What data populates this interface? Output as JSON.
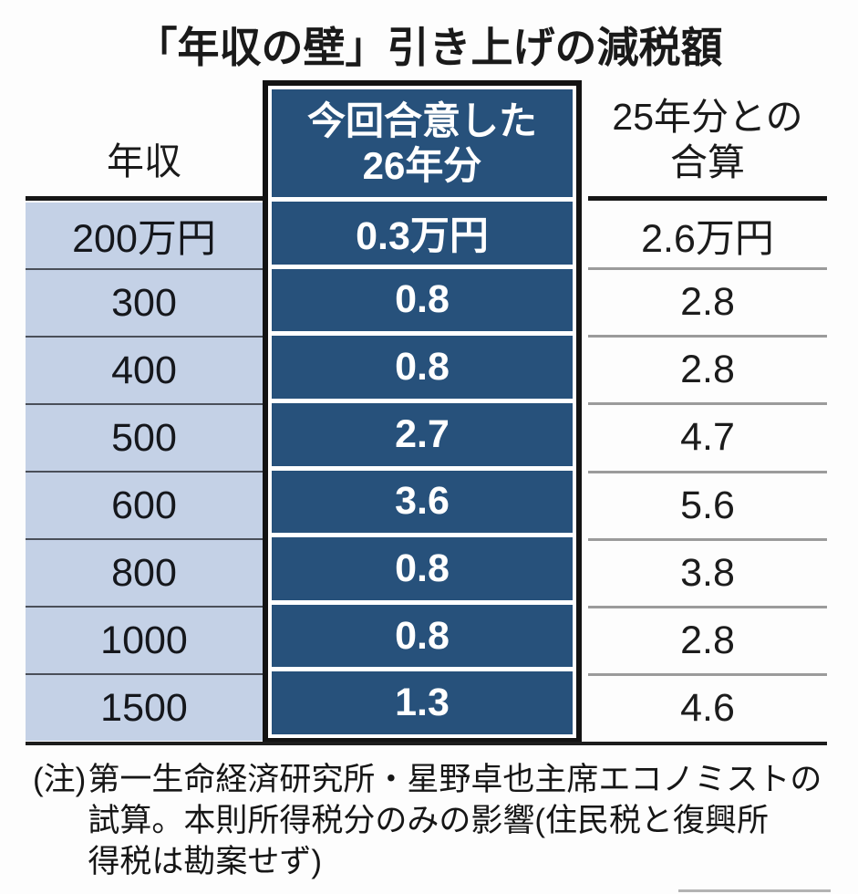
{
  "colors": {
    "navy": "#27517b",
    "lightblue": "#c4d1e6",
    "rule": "#161616",
    "sepleft": "#4a4f59",
    "sepright": "#9b9b9b",
    "bg": "#fdfdfd"
  },
  "chart_data": {
    "type": "table",
    "title": "「年収の壁」引き上げの減税額",
    "columns": [
      "年収",
      "今回合意した26年分",
      "25年分との合算"
    ],
    "headers": {
      "income": "年収",
      "fy26": "今回合意した\n26年分",
      "total": "25年分との\n合算"
    },
    "unit": "万円",
    "rows": [
      {
        "income": "200万円",
        "fy26": "0.3万円",
        "total": "2.6万円",
        "income_value": 200,
        "fy26_value": 0.3,
        "total_value": 2.6
      },
      {
        "income": "300",
        "fy26": "0.8",
        "total": "2.8",
        "income_value": 300,
        "fy26_value": 0.8,
        "total_value": 2.8
      },
      {
        "income": "400",
        "fy26": "0.8",
        "total": "2.8",
        "income_value": 400,
        "fy26_value": 0.8,
        "total_value": 2.8
      },
      {
        "income": "500",
        "fy26": "2.7",
        "total": "4.7",
        "income_value": 500,
        "fy26_value": 2.7,
        "total_value": 4.7
      },
      {
        "income": "600",
        "fy26": "3.6",
        "total": "5.6",
        "income_value": 600,
        "fy26_value": 3.6,
        "total_value": 5.6
      },
      {
        "income": "800",
        "fy26": "0.8",
        "total": "3.8",
        "income_value": 800,
        "fy26_value": 0.8,
        "total_value": 3.8
      },
      {
        "income": "1000",
        "fy26": "0.8",
        "total": "2.8",
        "income_value": 1000,
        "fy26_value": 0.8,
        "total_value": 2.8
      },
      {
        "income": "1500",
        "fy26": "1.3",
        "total": "4.6",
        "income_value": 1500,
        "fy26_value": 1.3,
        "total_value": 4.6
      }
    ],
    "note": "(注)第一生命経済研究所・星野卓也主席エコノミストの試算。本則所得税分のみの影響(住民税と復興所得税は勘案せず)"
  },
  "footnote": {
    "prefix": "(注)",
    "lines": [
      "第一生命経済研究所・星野卓也主席エコノミストの",
      "試算。本則所得税分のみの影響(住民税と復興所",
      "得税は勘案せず)"
    ]
  }
}
